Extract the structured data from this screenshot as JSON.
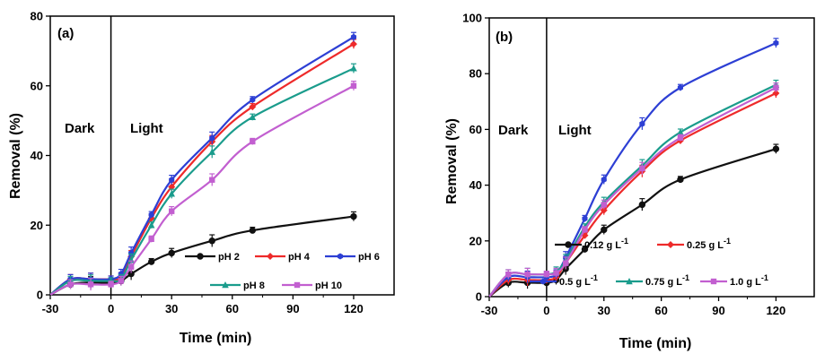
{
  "chart_data": [
    {
      "type": "line",
      "panel_label": "(a)",
      "xlabel": "Time (min)",
      "ylabel": "Removal (%)",
      "xlim": [
        -30,
        140
      ],
      "ylim": [
        0,
        80
      ],
      "xticks": [
        "-30",
        "0",
        "30",
        "60",
        "90",
        "120"
      ],
      "yticks": [
        "0",
        "20",
        "40",
        "60",
        "80"
      ],
      "divider_x": 0,
      "annotations": [
        "Dark",
        "Light"
      ],
      "legend_placement": "bottom-right",
      "x": [
        -30,
        -20,
        -10,
        0,
        5,
        10,
        20,
        30,
        50,
        70,
        120
      ],
      "series": [
        {
          "name": "pH 2",
          "color": "#111111",
          "values": [
            0,
            3,
            3.5,
            3.5,
            4,
            6,
            9.5,
            12,
            15.5,
            18.5,
            22.5
          ]
        },
        {
          "name": "pH 4",
          "color": "#ee2a2a",
          "values": [
            0,
            4.5,
            4.5,
            4.5,
            5,
            11,
            22,
            31,
            44,
            54,
            72
          ]
        },
        {
          "name": "pH 6",
          "color": "#2d3fd4",
          "values": [
            0,
            4.5,
            4.5,
            4.5,
            6,
            12,
            23,
            33,
            45,
            56,
            74
          ]
        },
        {
          "name": "pH 8",
          "color": "#1a9c8c",
          "values": [
            0,
            4,
            4,
            4,
            4.5,
            10,
            20,
            29,
            41,
            51,
            65
          ]
        },
        {
          "name": "pH 10",
          "color": "#c25fd0",
          "values": [
            0,
            3,
            3,
            3,
            4,
            8,
            16,
            24,
            33,
            44,
            60
          ]
        }
      ]
    },
    {
      "type": "line",
      "panel_label": "(b)",
      "xlabel": "Time (min)",
      "ylabel": "Removal (%)",
      "xlim": [
        -30,
        140
      ],
      "ylim": [
        0,
        100
      ],
      "xticks": [
        "-30",
        "0",
        "30",
        "60",
        "90",
        "120"
      ],
      "yticks": [
        "0",
        "20",
        "40",
        "60",
        "80",
        "100"
      ],
      "divider_x": 0,
      "annotations": [
        "Dark",
        "Light"
      ],
      "legend_placement": "bottom-right",
      "x": [
        -30,
        -20,
        -10,
        0,
        5,
        10,
        20,
        30,
        50,
        70,
        120
      ],
      "series": [
        {
          "name": "0.12 g L",
          "sup": "-1",
          "color": "#111111",
          "values": [
            0,
            5,
            5,
            5,
            6,
            10,
            17,
            24,
            33,
            42,
            53
          ]
        },
        {
          "name": "0.25 g L",
          "sup": "-1",
          "color": "#ee2a2a",
          "values": [
            0,
            6,
            6,
            6,
            7,
            12,
            22,
            31,
            45,
            56,
            73
          ]
        },
        {
          "name": "0.5 g L",
          "sup": "-1",
          "color": "#2d3fd4",
          "values": [
            0,
            7,
            7,
            7,
            8,
            14,
            28,
            42,
            62,
            75,
            91
          ]
        },
        {
          "name": "0.75 g L",
          "sup": "-1",
          "color": "#1a9c8c",
          "values": [
            0,
            8,
            8,
            8,
            9,
            13,
            25,
            34,
            47,
            59,
            76
          ]
        },
        {
          "name": "1.0 g L",
          "sup": "-1",
          "color": "#c25fd0",
          "values": [
            0,
            8,
            8,
            8,
            8.5,
            12,
            24,
            33,
            46,
            57,
            75
          ]
        }
      ]
    }
  ]
}
